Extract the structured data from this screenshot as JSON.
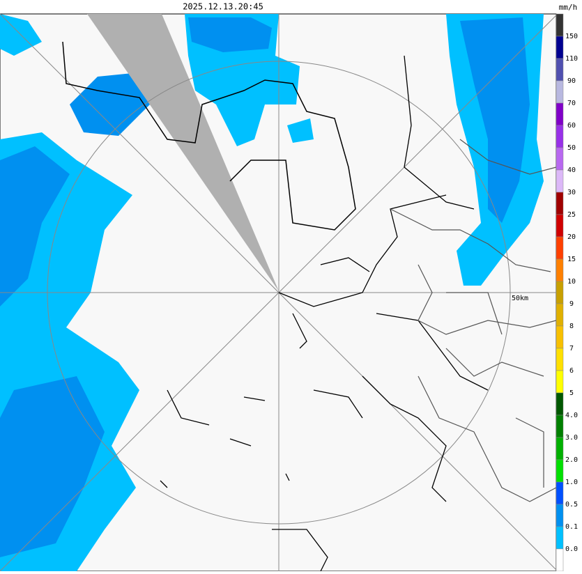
{
  "header": {
    "timestamp": "2025.12.13.20:45",
    "unit": "mm/h"
  },
  "map": {
    "range_label": "50km"
  },
  "legend": {
    "labels": [
      "150",
      "110",
      "90",
      "70",
      "60",
      "50",
      "40",
      "30",
      "25",
      "20",
      "15",
      "10",
      "9",
      "8",
      "7",
      "6",
      "5",
      "4.0",
      "3.0",
      "2.0",
      "1.0",
      "0.5",
      "0.1",
      "0.0"
    ],
    "colors": [
      "#333333",
      "#000090",
      "#5050b0",
      "#b8b8e0",
      "#8000c8",
      "#9830e8",
      "#b868f0",
      "#dcb8f8",
      "#a00000",
      "#d00000",
      "#ff4000",
      "#ff8000",
      "#c8a000",
      "#e0b000",
      "#f8c000",
      "#ffe000",
      "#ffff00",
      "#005800",
      "#008000",
      "#00b000",
      "#00e000",
      "#0050ff",
      "#0090f0",
      "#00c0ff",
      "#ffffff"
    ]
  }
}
